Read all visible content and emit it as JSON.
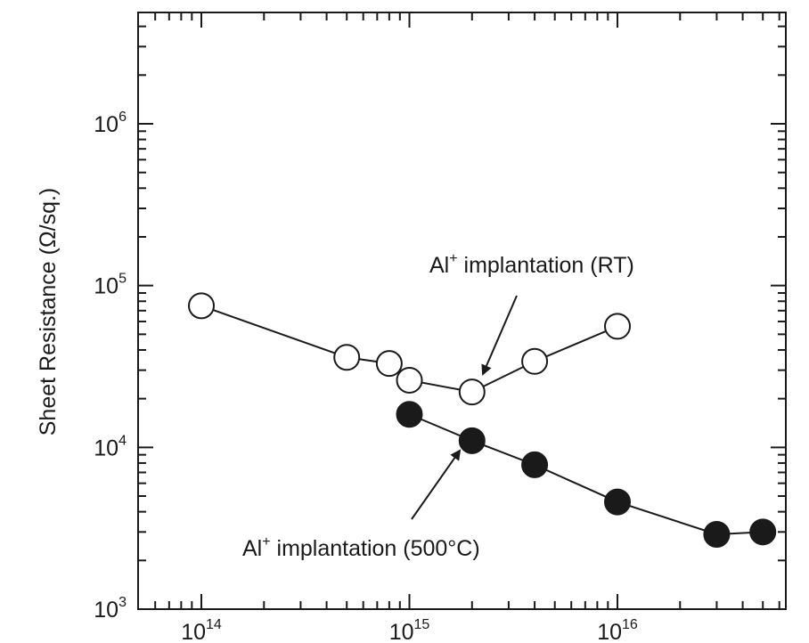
{
  "chart_data": {
    "type": "scatter",
    "ylabel": "Sheet Resistance (Ω/sq.)",
    "xlabel": "",
    "xscale": "log",
    "yscale": "log",
    "xlim": [
      30000000000000.0,
      5e+16
    ],
    "ylim": [
      1000,
      5000000
    ],
    "x_ticks": [
      {
        "value": 100000000000000.0,
        "base": "10",
        "exp": "14"
      },
      {
        "value": 1000000000000000.0,
        "base": "10",
        "exp": "15"
      },
      {
        "value": 1e+16,
        "base": "10",
        "exp": "16"
      }
    ],
    "y_ticks": [
      {
        "value": 1000,
        "base": "10",
        "exp": "3"
      },
      {
        "value": 10000,
        "base": "10",
        "exp": "4"
      },
      {
        "value": 100000,
        "base": "10",
        "exp": "5"
      },
      {
        "value": 1000000,
        "base": "10",
        "exp": "6"
      }
    ],
    "series": [
      {
        "marker": "open-circle",
        "x": [
          100000000000000.0,
          500000000000000.0,
          800000000000000.0,
          1000000000000000.0,
          2000000000000000.0,
          4000000000000000.0,
          1e+16
        ],
        "y": [
          75000,
          36000,
          33000,
          26000,
          22000,
          34000,
          56000
        ]
      },
      {
        "marker": "filled-circle",
        "x": [
          1000000000000000.0,
          2000000000000000.0,
          4000000000000000.0,
          1e+16,
          3e+16,
          5e+16
        ],
        "y": [
          16000,
          11000,
          7800,
          4600,
          2900,
          3000
        ]
      }
    ],
    "annotations": [
      {
        "base": "Al",
        "sup": "+",
        "rest": " implantation (RT)"
      },
      {
        "base": "Al",
        "sup": "+",
        "rest": " implantation (500°C)"
      }
    ],
    "grid": false,
    "legend": "none"
  }
}
